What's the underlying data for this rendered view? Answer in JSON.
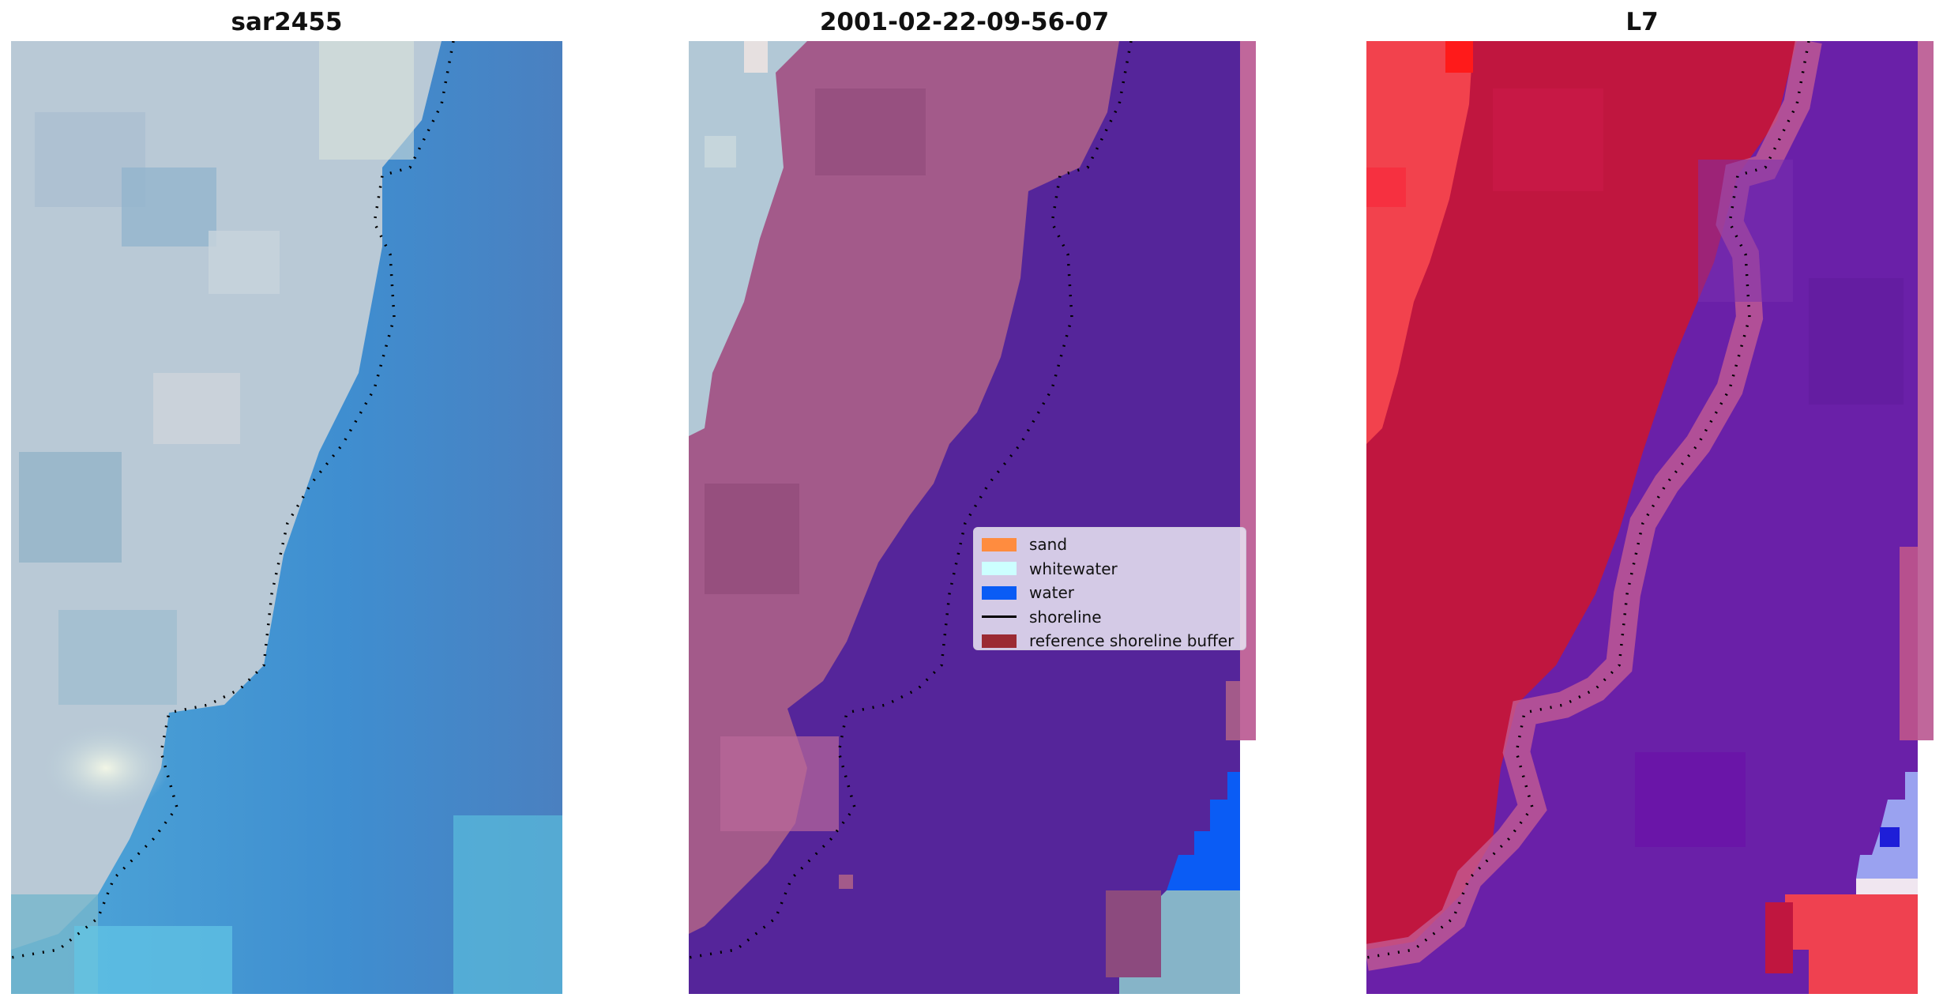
{
  "panels": [
    {
      "title": "sar2455"
    },
    {
      "title": "2001-02-22-09-56-07"
    },
    {
      "title": "L7"
    }
  ],
  "legend": {
    "items": [
      {
        "label": "sand",
        "color": "#ff8c3f",
        "kind": "patch"
      },
      {
        "label": "whitewater",
        "color": "#ccffff",
        "kind": "patch"
      },
      {
        "label": "water",
        "color": "#0a5cf5",
        "kind": "patch"
      },
      {
        "label": "shoreline",
        "color": "#000000",
        "kind": "line"
      },
      {
        "label": "reference shoreline buffer",
        "color": "#9b2a33",
        "kind": "patch"
      }
    ]
  },
  "colors": {
    "rgb_land": "#b7c8d8",
    "rgb_water": "#4a8fc9",
    "classified_land": "#a35a8a",
    "classified_water": "#55259a",
    "index_land": "#c0163f",
    "index_water": "#6a20a8",
    "shoreline_dots": "#000000"
  }
}
